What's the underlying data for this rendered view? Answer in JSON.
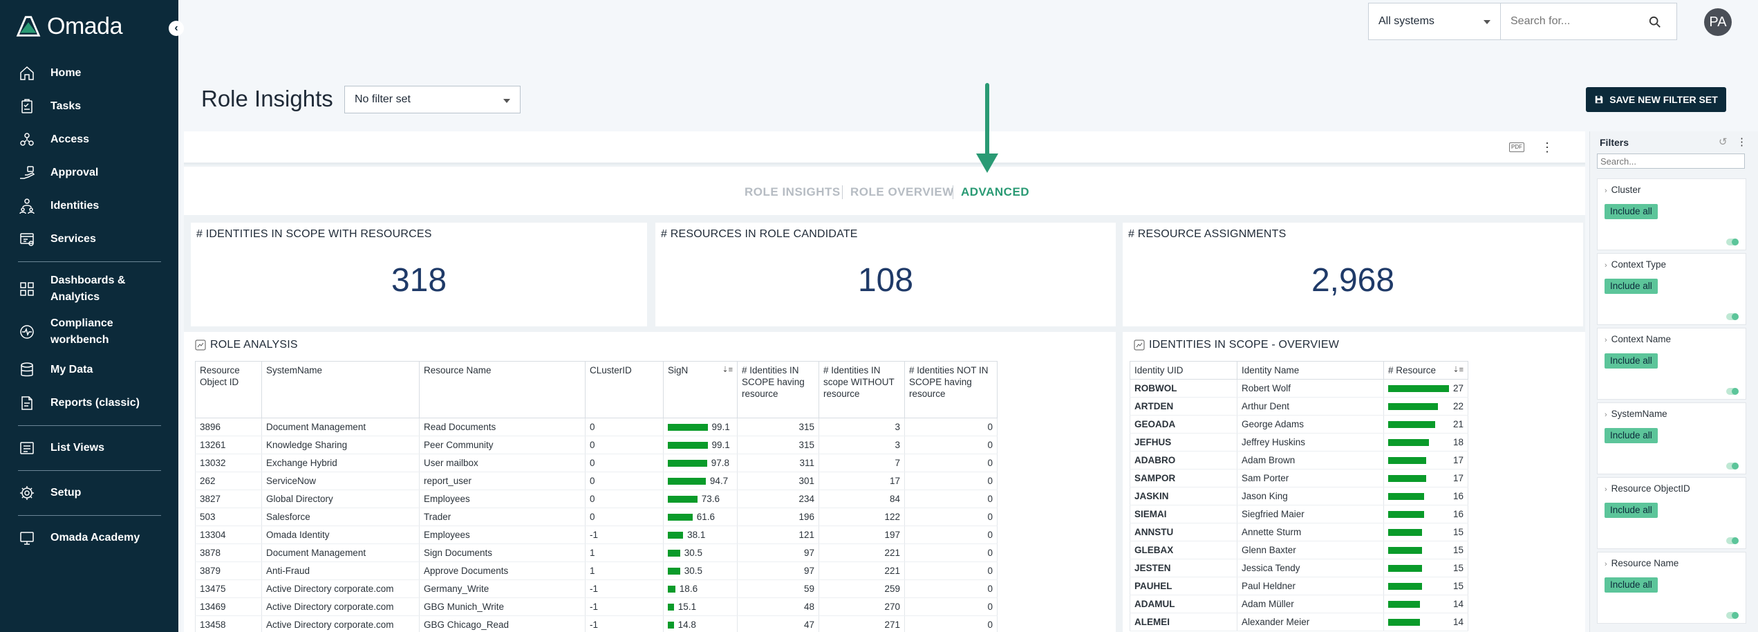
{
  "brand": {
    "name": "Omada",
    "accent": "#2a9a74",
    "sidebar_bg": "#0c2a3a"
  },
  "sidebar": {
    "collapse_icon": "chevron-left-icon",
    "items": [
      {
        "label": "Home",
        "icon": "home-icon"
      },
      {
        "label": "Tasks",
        "icon": "clipboard-icon"
      },
      {
        "label": "Access",
        "icon": "access-icon"
      },
      {
        "label": "Approval",
        "icon": "approval-icon"
      },
      {
        "label": "Identities",
        "icon": "identities-icon"
      },
      {
        "label": "Services",
        "icon": "services-icon"
      },
      {
        "label": "Dashboards & Analytics",
        "icon": "dashboard-icon"
      },
      {
        "label": "Compliance workbench",
        "icon": "compliance-icon"
      },
      {
        "label": "My Data",
        "icon": "database-icon"
      },
      {
        "label": "Reports (classic)",
        "icon": "reports-icon"
      },
      {
        "label": "List Views",
        "icon": "list-icon"
      },
      {
        "label": "Setup",
        "icon": "gear-icon"
      },
      {
        "label": "Omada Academy",
        "icon": "academy-icon"
      }
    ]
  },
  "topbar": {
    "system_select": "All systems",
    "search_placeholder": "Search for...",
    "avatar_initials": "PA"
  },
  "page": {
    "title": "Role Insights",
    "filter_set": "No filter set",
    "save_button": "SAVE NEW FILTER SET"
  },
  "report_tabs": [
    {
      "label": "ROLE INSIGHTS",
      "active": false
    },
    {
      "label": "ROLE OVERVIEW",
      "active": false
    },
    {
      "label": "ADVANCED",
      "active": true
    }
  ],
  "toolbar": {
    "pdf_label": "PDF"
  },
  "kpis": [
    {
      "title": "# IDENTITIES IN SCOPE WITH RESOURCES",
      "value": "318"
    },
    {
      "title": "# RESOURCES IN ROLE CANDIDATE",
      "value": "108"
    },
    {
      "title": "# RESOURCE ASSIGNMENTS",
      "value": "2,968"
    }
  ],
  "role_analysis": {
    "title": "ROLE ANALYSIS",
    "headers": [
      "Resource Object ID",
      "SystemName",
      "Resource Name",
      "CLusterID",
      "SigN",
      "# Identities IN SCOPE having resource",
      "# Identities IN scope WITHOUT resource",
      "# Identities NOT IN SCOPE having resource"
    ],
    "rows": [
      {
        "id": "3896",
        "system": "Document Management",
        "resource": "Read Documents",
        "cluster": "0",
        "sign": 99.1,
        "sign_label": "99.1",
        "in_having": "315",
        "in_without": "3",
        "not_in": "0"
      },
      {
        "id": "13261",
        "system": "Knowledge Sharing",
        "resource": "Peer Community",
        "cluster": "0",
        "sign": 99.1,
        "sign_label": "99.1",
        "in_having": "315",
        "in_without": "3",
        "not_in": "0"
      },
      {
        "id": "13032",
        "system": "Exchange Hybrid",
        "resource": "User mailbox",
        "cluster": "0",
        "sign": 97.8,
        "sign_label": "97.8",
        "in_having": "311",
        "in_without": "7",
        "not_in": "0"
      },
      {
        "id": "262",
        "system": "ServiceNow",
        "resource": "report_user",
        "cluster": "0",
        "sign": 94.7,
        "sign_label": "94.7",
        "in_having": "301",
        "in_without": "17",
        "not_in": "0"
      },
      {
        "id": "3827",
        "system": "Global Directory",
        "resource": "Employees",
        "cluster": "0",
        "sign": 73.6,
        "sign_label": "73.6",
        "in_having": "234",
        "in_without": "84",
        "not_in": "0"
      },
      {
        "id": "503",
        "system": "Salesforce",
        "resource": "Trader",
        "cluster": "0",
        "sign": 61.6,
        "sign_label": "61.6",
        "in_having": "196",
        "in_without": "122",
        "not_in": "0"
      },
      {
        "id": "13304",
        "system": "Omada Identity",
        "resource": "Employees",
        "cluster": "-1",
        "sign": 38.1,
        "sign_label": "38.1",
        "in_having": "121",
        "in_without": "197",
        "not_in": "0"
      },
      {
        "id": "3878",
        "system": "Document Management",
        "resource": "Sign Documents",
        "cluster": "1",
        "sign": 30.5,
        "sign_label": "30.5",
        "in_having": "97",
        "in_without": "221",
        "not_in": "0"
      },
      {
        "id": "3879",
        "system": "Anti-Fraud",
        "resource": "Approve Documents",
        "cluster": "1",
        "sign": 30.5,
        "sign_label": "30.5",
        "in_having": "97",
        "in_without": "221",
        "not_in": "0"
      },
      {
        "id": "13475",
        "system": "Active Directory corporate.com",
        "resource": "Germany_Write",
        "cluster": "-1",
        "sign": 18.6,
        "sign_label": "18.6",
        "in_having": "59",
        "in_without": "259",
        "not_in": "0"
      },
      {
        "id": "13469",
        "system": "Active Directory corporate.com",
        "resource": "GBG Munich_Write",
        "cluster": "-1",
        "sign": 15.1,
        "sign_label": "15.1",
        "in_having": "48",
        "in_without": "270",
        "not_in": "0"
      },
      {
        "id": "13458",
        "system": "Active Directory corporate.com",
        "resource": "GBG Chicago_Read",
        "cluster": "-1",
        "sign": 14.8,
        "sign_label": "14.8",
        "in_having": "47",
        "in_without": "271",
        "not_in": "0"
      }
    ]
  },
  "identities_overview": {
    "title": "IDENTITIES IN SCOPE - OVERVIEW",
    "headers": [
      "Identity UID",
      "Identity Name",
      "# Resource"
    ],
    "max": 27,
    "rows": [
      {
        "uid": "ROBWOL",
        "name": "Robert Wolf",
        "count": 27,
        "count_label": "27"
      },
      {
        "uid": "ARTDEN",
        "name": "Arthur Dent",
        "count": 22,
        "count_label": "22"
      },
      {
        "uid": "GEOADA",
        "name": "George Adams",
        "count": 21,
        "count_label": "21"
      },
      {
        "uid": "JEFHUS",
        "name": "Jeffrey Huskins",
        "count": 18,
        "count_label": "18"
      },
      {
        "uid": "ADABRO",
        "name": "Adam Brown",
        "count": 17,
        "count_label": "17"
      },
      {
        "uid": "SAMPOR",
        "name": "Sam Porter",
        "count": 17,
        "count_label": "17"
      },
      {
        "uid": "JASKIN",
        "name": "Jason King",
        "count": 16,
        "count_label": "16"
      },
      {
        "uid": "SIEMAI",
        "name": "Siegfried Maier",
        "count": 16,
        "count_label": "16"
      },
      {
        "uid": "ANNSTU",
        "name": "Annette Sturm",
        "count": 15,
        "count_label": "15"
      },
      {
        "uid": "GLEBAX",
        "name": "Glenn Baxter",
        "count": 15,
        "count_label": "15"
      },
      {
        "uid": "JESTEN",
        "name": "Jessica Tendy",
        "count": 15,
        "count_label": "15"
      },
      {
        "uid": "PAUHEL",
        "name": "Paul Heldner",
        "count": 15,
        "count_label": "15"
      },
      {
        "uid": "ADAMUL",
        "name": "Adam Müller",
        "count": 14,
        "count_label": "14"
      },
      {
        "uid": "ALEMEI",
        "name": "Alexander Meier",
        "count": 14,
        "count_label": "14"
      }
    ]
  },
  "filters": {
    "title": "Filters",
    "search_placeholder": "Search...",
    "include_label": "Include all",
    "items": [
      {
        "name": "Cluster"
      },
      {
        "name": "Context Type"
      },
      {
        "name": "Context Name"
      },
      {
        "name": "SystemName"
      },
      {
        "name": "Resource ObjectID"
      },
      {
        "name": "Resource Name"
      }
    ]
  }
}
